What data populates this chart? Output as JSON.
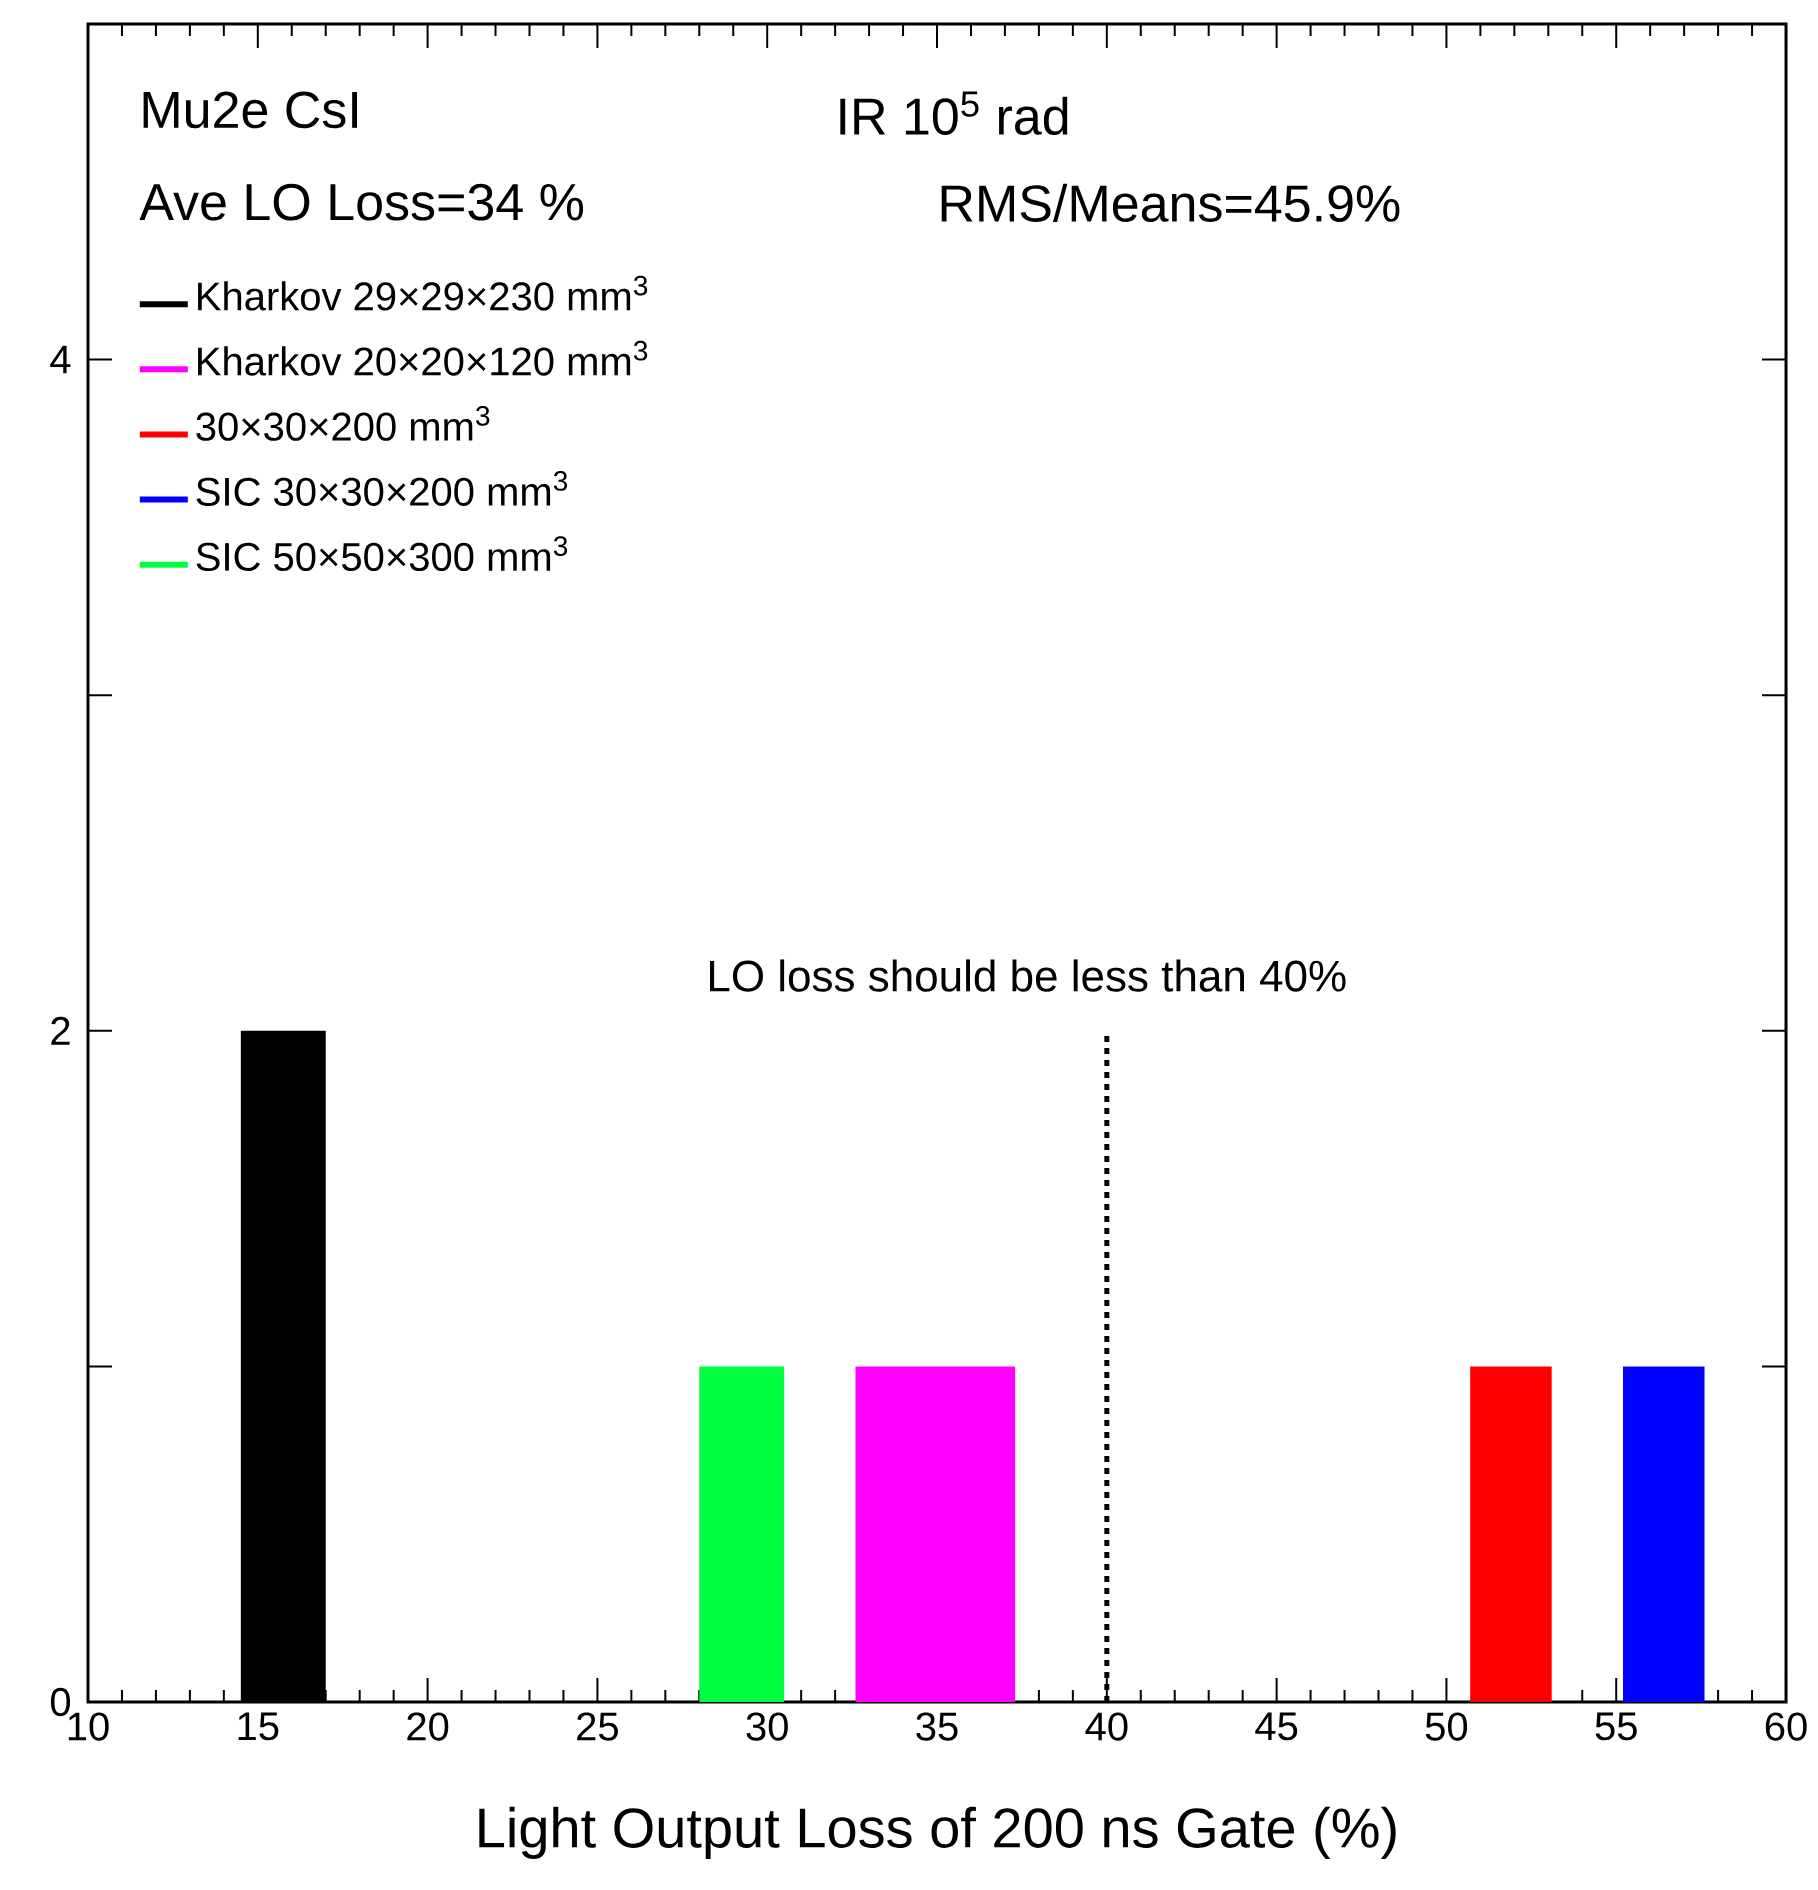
{
  "chart_data": {
    "type": "histogram",
    "xlabel": "Light Output Loss of 200 ns Gate (%)",
    "annotations": [
      "Mu2e CsI",
      "IR 10$^{5}$ rad",
      "Ave LO Loss=34 %",
      "RMS/Means=45.9%"
    ],
    "bins": [
      14.5,
      17,
      28,
      30.5,
      32.6,
      37.3,
      50.7,
      53.1,
      55.2,
      57.6
    ],
    "series": [
      {
        "name": "Kharkov 29×29×230 mm$^{3}$",
        "color": "#000000",
        "values": [
          2,
          null,
          null,
          null,
          null,
          null,
          null,
          null,
          null
        ]
      },
      {
        "name": "Kharkov 20×20×120 mm$^{3}$",
        "color": "#ff00ff",
        "values": [
          null,
          null,
          null,
          null,
          1,
          null,
          null,
          null,
          null
        ]
      },
      {
        "name": "30×30×200 mm$^{3}$",
        "color": "#ff0000",
        "values": [
          null,
          null,
          null,
          null,
          null,
          null,
          1,
          null,
          null
        ]
      },
      {
        "name": "SIC 30×30×200 mm$^{3}$",
        "color": "#0000ff",
        "values": [
          null,
          null,
          null,
          null,
          null,
          null,
          null,
          null,
          1
        ]
      },
      {
        "name": "SIC 50×50×300 mm$^{3}$",
        "color": "#00ff40",
        "values": [
          null,
          null,
          1,
          null,
          null,
          null,
          null,
          null,
          null
        ]
      }
    ],
    "xlim": [
      10,
      60
    ],
    "ylim": [
      0,
      5
    ],
    "xticks": [
      10,
      15,
      20,
      25,
      30,
      35,
      40,
      45,
      50,
      55,
      60
    ],
    "yticks": [
      0,
      {
        "value": 1,
        "label": null
      },
      2,
      {
        "value": 3,
        "label": null
      },
      4
    ],
    "ref_lines": [
      {
        "axis": "x",
        "value": 40,
        "label": "LO loss should be less than 40%",
        "color": "#000000",
        "line_style": "dotted"
      }
    ],
    "legend": "top left",
    "grid": false
  }
}
